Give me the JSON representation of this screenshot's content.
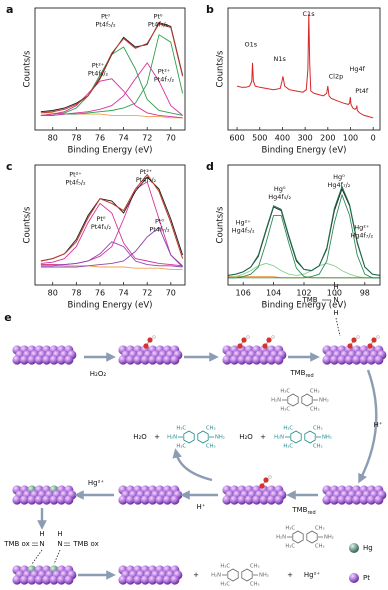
{
  "chart_data": [
    {
      "panel": "a",
      "type": "line",
      "xlabel": "Binding Energy (eV)",
      "ylabel": "Counts/s",
      "x": [
        81,
        80,
        79,
        78,
        77,
        76,
        75,
        74,
        73,
        72,
        71,
        70,
        69
      ],
      "xlim": [
        81.5,
        68.8
      ],
      "xticks": [
        80,
        78,
        76,
        74,
        72,
        70
      ],
      "ylim": [
        0,
        100
      ],
      "series": [
        {
          "color": "#f0a050",
          "values": [
            14,
            14,
            13,
            13,
            13,
            13,
            12,
            12,
            12,
            11,
            11,
            10,
            10
          ]
        },
        {
          "color": "#2e9e4a",
          "values": [
            12,
            13,
            14,
            18,
            28,
            45,
            62,
            68,
            50,
            25,
            16,
            14,
            12
          ]
        },
        {
          "color": "#2e9e4a",
          "values": [
            12,
            12,
            13,
            13,
            14,
            15,
            16,
            18,
            22,
            38,
            78,
            72,
            30
          ]
        },
        {
          "color": "#d6339a",
          "values": [
            12,
            13,
            15,
            20,
            30,
            40,
            42,
            32,
            20,
            14,
            12,
            11,
            10
          ]
        },
        {
          "color": "#d6339a",
          "values": [
            12,
            12,
            13,
            14,
            15,
            17,
            20,
            28,
            42,
            55,
            40,
            20,
            12
          ]
        },
        {
          "color": "#1a1a1a",
          "values": [
            15,
            16,
            18,
            22,
            28,
            42,
            62,
            76,
            68,
            70,
            88,
            85,
            45
          ]
        },
        {
          "color": "#c0392b",
          "values": [
            14,
            15,
            17,
            21,
            28,
            43,
            63,
            75,
            67,
            71,
            87,
            84,
            44
          ]
        }
      ],
      "annotations": [
        [
          "Pt⁰",
          "Pt4f₅/₂"
        ],
        [
          "Pt⁰",
          "Pt4f₇/₂"
        ],
        [
          "Pt²⁺",
          "Pt4f₅/₂"
        ],
        [
          "Pt²⁺",
          "Pt4f₇/₂"
        ]
      ]
    },
    {
      "panel": "b",
      "type": "line",
      "xlabel": "Binding Energy (eV)",
      "ylabel": "Counts/s",
      "x": [
        600,
        580,
        560,
        545,
        535,
        532,
        528,
        520,
        500,
        470,
        440,
        410,
        402,
        398,
        390,
        370,
        340,
        310,
        295,
        288,
        284,
        280,
        275,
        260,
        240,
        220,
        205,
        200,
        195,
        185,
        160,
        130,
        110,
        104,
        101,
        98,
        90,
        80,
        74,
        72,
        70,
        60,
        40,
        20,
        0
      ],
      "xlim": [
        640,
        -30
      ],
      "xticks": [
        600,
        500,
        400,
        300,
        200,
        100,
        0
      ],
      "ylim": [
        0,
        100
      ],
      "series": [
        {
          "color": "#d62728",
          "values": [
            36,
            35,
            35,
            36,
            40,
            55,
            40,
            36,
            35,
            34,
            33,
            34,
            40,
            44,
            36,
            33,
            32,
            31,
            33,
            50,
            95,
            55,
            32,
            30,
            29,
            28,
            30,
            36,
            28,
            26,
            24,
            22,
            21,
            22,
            27,
            21,
            18,
            17,
            18,
            20,
            16,
            14,
            12,
            11,
            10
          ]
        }
      ],
      "annotations": [
        [
          "O1s"
        ],
        [
          "N1s"
        ],
        [
          "C1s"
        ],
        [
          "Cl2p"
        ],
        [
          "Hg4f"
        ],
        [
          "Pt4f"
        ]
      ]
    },
    {
      "panel": "c",
      "type": "line",
      "xlabel": "Binding Energy (eV)",
      "ylabel": "Counts/s",
      "x": [
        81,
        80,
        79,
        78,
        77,
        76,
        75,
        74,
        73,
        72,
        71,
        70,
        69
      ],
      "xlim": [
        81.5,
        68.8
      ],
      "xticks": [
        80,
        78,
        76,
        74,
        72,
        70
      ],
      "ylim": [
        0,
        100
      ],
      "series": [
        {
          "color": "#f0a050",
          "values": [
            17,
            17,
            16,
            16,
            16,
            15,
            15,
            15,
            14,
            14,
            14,
            13,
            13
          ]
        },
        {
          "color": "#d6339a",
          "values": [
            18,
            19,
            22,
            32,
            52,
            68,
            60,
            35,
            22,
            20,
            18,
            17,
            16
          ]
        },
        {
          "color": "#d6339a",
          "values": [
            17,
            17,
            17,
            18,
            20,
            24,
            32,
            55,
            80,
            86,
            55,
            25,
            16
          ]
        },
        {
          "color": "#8e44ad",
          "values": [
            16,
            16,
            17,
            18,
            20,
            26,
            36,
            32,
            20,
            17,
            16,
            16,
            15
          ]
        },
        {
          "color": "#8e44ad",
          "values": [
            15,
            15,
            15,
            15,
            16,
            17,
            18,
            20,
            28,
            40,
            48,
            25,
            15
          ]
        },
        {
          "color": "#1a1a1a",
          "values": [
            20,
            22,
            26,
            38,
            58,
            72,
            70,
            60,
            78,
            90,
            80,
            55,
            25
          ]
        },
        {
          "color": "#c0392b",
          "values": [
            20,
            22,
            26,
            36,
            56,
            72,
            68,
            62,
            80,
            92,
            78,
            52,
            22
          ]
        }
      ],
      "annotations": [
        [
          "Pt²⁺",
          "Pt4f₅/₂"
        ],
        [
          "Pt²⁺",
          "Pt4f₇/₂"
        ],
        [
          "Pt⁰",
          "Pt4f₅/₂"
        ],
        [
          "Pt⁰",
          "Pt4f₇/₂"
        ]
      ]
    },
    {
      "panel": "d",
      "type": "line",
      "xlabel": "Binding Energy (eV)",
      "ylabel": "Counts/s",
      "x": [
        107,
        106.5,
        106,
        105.5,
        105,
        104.5,
        104,
        103.5,
        103,
        102.5,
        102,
        101.5,
        101,
        100.5,
        100,
        99.5,
        99,
        98.5,
        98,
        97.5,
        97
      ],
      "xlim": [
        107,
        97
      ],
      "xticks": [
        106,
        104,
        102,
        100,
        98
      ],
      "ylim": [
        0,
        100
      ],
      "series": [
        {
          "color": "#f0a050",
          "values": [
            7,
            7,
            7,
            7,
            7,
            7,
            7,
            6,
            6,
            6,
            6,
            6,
            6,
            6,
            6,
            6,
            6,
            6,
            6,
            6,
            6
          ]
        },
        {
          "color": "#8ccf8c",
          "values": [
            6,
            7,
            9,
            12,
            16,
            18,
            16,
            12,
            9,
            8,
            9,
            12,
            16,
            18,
            16,
            12,
            9,
            7,
            6,
            6,
            6
          ]
        },
        {
          "color": "#2e8b57",
          "values": [
            6,
            6,
            7,
            9,
            15,
            35,
            58,
            58,
            35,
            14,
            7,
            6,
            6,
            6,
            6,
            6,
            6,
            6,
            6,
            6,
            6
          ]
        },
        {
          "color": "#2e8b57",
          "values": [
            6,
            6,
            6,
            6,
            6,
            6,
            6,
            6,
            6,
            6,
            6,
            7,
            9,
            20,
            52,
            75,
            58,
            25,
            9,
            6,
            6
          ]
        },
        {
          "color": "#1a1a1a",
          "values": [
            8,
            9,
            11,
            15,
            24,
            45,
            65,
            62,
            40,
            20,
            13,
            12,
            16,
            30,
            62,
            80,
            66,
            35,
            15,
            9,
            8
          ]
        },
        {
          "color": "#1e6e4e",
          "values": [
            8,
            9,
            11,
            15,
            25,
            46,
            66,
            63,
            41,
            21,
            13,
            12,
            16,
            31,
            64,
            82,
            67,
            36,
            15,
            9,
            8
          ]
        }
      ],
      "annotations": [
        [
          "Hg²⁺",
          "Hg4f₅/₂"
        ],
        [
          "Hg⁰",
          "Hg4f₅/₂"
        ],
        [
          "Hg⁰",
          "Hg4f₇/₂"
        ],
        [
          "Hg²⁺",
          "Hg4f₇/₂"
        ]
      ]
    }
  ],
  "scheme": {
    "panel": "e",
    "h2o2": "H₂O₂",
    "tmb": "TMB",
    "n": "N",
    "h": "H",
    "tmb_red": {
      "main": "TMB",
      "sub": "red"
    },
    "h_plus": "H⁺",
    "h2o": "H₂O",
    "plus": "+",
    "hg2": "Hg²⁺",
    "tmb_ox": "TMB ox",
    "molecule": {
      "ch3_left": "H₃C",
      "ch3_right": "CH₃",
      "nh2_left": "H₂N",
      "nh2_right": "NH₂"
    },
    "legend": [
      "Hg",
      "Pt"
    ]
  }
}
